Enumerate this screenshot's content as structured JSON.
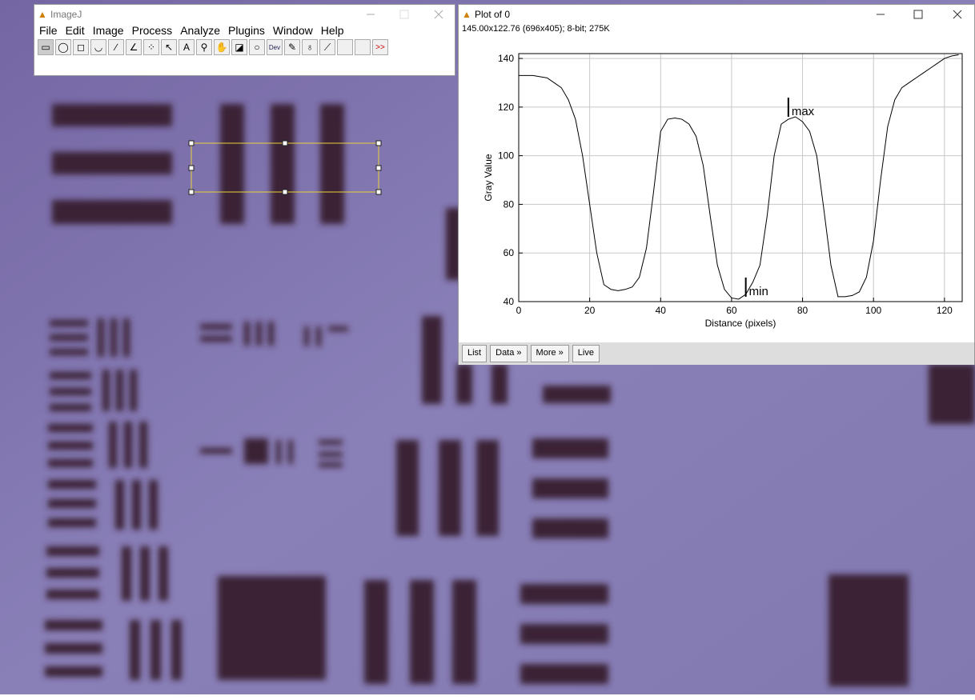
{
  "imagej": {
    "title": "ImageJ",
    "menu": [
      "File",
      "Edit",
      "Image",
      "Process",
      "Analyze",
      "Plugins",
      "Window",
      "Help"
    ],
    "tool_text": "A",
    "dev": "Dev",
    "more_tools": ">>"
  },
  "plot_window": {
    "title": "Plot of 0",
    "info": "145.00x122.76  (696x405); 8-bit; 275K",
    "buttons": [
      "List",
      "Data »",
      "More »",
      "Live"
    ]
  },
  "chart_data": {
    "type": "line",
    "x_label": "Distance (pixels)",
    "y_label": "Gray Value",
    "x": [
      0,
      2,
      4,
      6,
      8,
      10,
      12,
      14,
      16,
      18,
      20,
      22,
      24,
      26,
      28,
      30,
      32,
      34,
      36,
      38,
      40,
      42,
      44,
      46,
      48,
      50,
      52,
      54,
      56,
      58,
      60,
      62,
      64,
      66,
      68,
      70,
      72,
      74,
      76,
      78,
      80,
      82,
      84,
      86,
      88,
      90,
      92,
      94,
      96,
      98,
      100,
      102,
      104,
      106,
      108,
      110,
      112,
      114,
      116,
      118,
      120,
      122,
      124
    ],
    "values": [
      133,
      133,
      133,
      132.5,
      132,
      130,
      128,
      123,
      115,
      100,
      80,
      60,
      47,
      45,
      44.5,
      45,
      46,
      50,
      62,
      85,
      110,
      115,
      115.5,
      115,
      113,
      108,
      96,
      75,
      55,
      45,
      41.5,
      41,
      43,
      48,
      55,
      75,
      100,
      113,
      115,
      116,
      114,
      110,
      100,
      78,
      55,
      42,
      42,
      42.5,
      44,
      50,
      65,
      90,
      112,
      123,
      128,
      130,
      132,
      134,
      136,
      138,
      140,
      141,
      141.5
    ],
    "color": "#000000",
    "xlim": [
      0,
      125
    ],
    "ylim": [
      40,
      142
    ],
    "xticks": [
      0,
      20,
      40,
      60,
      80,
      100,
      120
    ],
    "yticks": [
      40,
      60,
      80,
      100,
      120,
      140
    ],
    "grid": true,
    "annotations": [
      {
        "text": "max",
        "x": 76,
        "y": 116
      },
      {
        "text": "min",
        "x": 64,
        "y": 42
      }
    ]
  }
}
